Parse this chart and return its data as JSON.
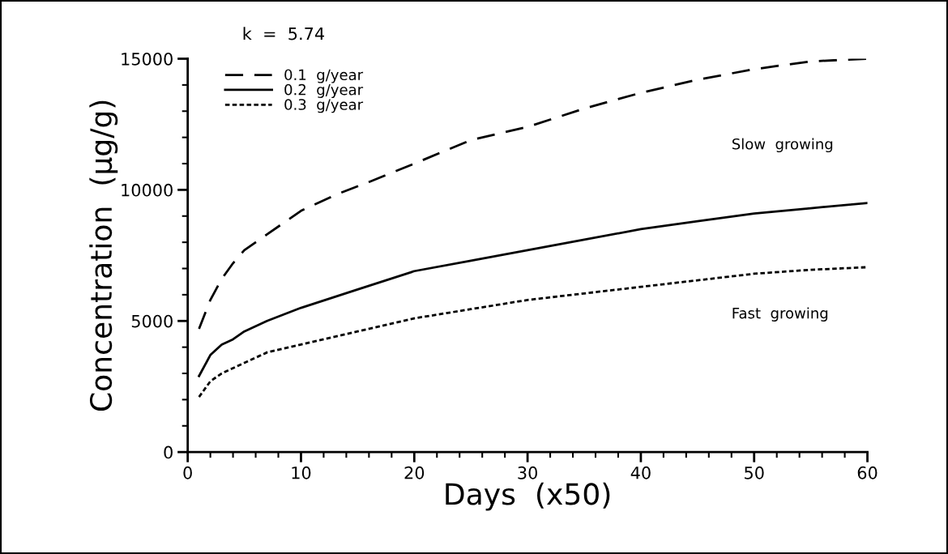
{
  "chart_data": {
    "type": "line",
    "xlabel": "Days  (x50)",
    "ylabel": "Concentration  (μg/g)",
    "annotations": [
      "k  =  5.74",
      "Slow  growing",
      "Fast  growing"
    ],
    "legend": "top left",
    "grid": false,
    "marker": "none",
    "xlim": [
      0,
      60
    ],
    "ylim": [
      0,
      15000
    ],
    "xticks": [
      0,
      {
        "value": 2,
        "label": null
      },
      {
        "value": 4,
        "label": null
      },
      {
        "value": 6,
        "label": null
      },
      {
        "value": 8,
        "label": null
      },
      10,
      {
        "value": 12,
        "label": null
      },
      {
        "value": 14,
        "label": null
      },
      {
        "value": 16,
        "label": null
      },
      {
        "value": 18,
        "label": null
      },
      20,
      {
        "value": 22,
        "label": null
      },
      {
        "value": 24,
        "label": null
      },
      {
        "value": 26,
        "label": null
      },
      {
        "value": 28,
        "label": null
      },
      30,
      {
        "value": 32,
        "label": null
      },
      {
        "value": 34,
        "label": null
      },
      {
        "value": 36,
        "label": null
      },
      {
        "value": 38,
        "label": null
      },
      40,
      {
        "value": 42,
        "label": null
      },
      {
        "value": 44,
        "label": null
      },
      {
        "value": 46,
        "label": null
      },
      {
        "value": 48,
        "label": null
      },
      50,
      {
        "value": 52,
        "label": null
      },
      {
        "value": 54,
        "label": null
      },
      {
        "value": 56,
        "label": null
      },
      {
        "value": 58,
        "label": null
      },
      60
    ],
    "yticks": [
      0,
      {
        "value": 1000,
        "label": null
      },
      {
        "value": 2000,
        "label": null
      },
      {
        "value": 3000,
        "label": null
      },
      {
        "value": 4000,
        "label": null
      },
      5000,
      {
        "value": 6000,
        "label": null
      },
      {
        "value": 7000,
        "label": null
      },
      {
        "value": 8000,
        "label": null
      },
      {
        "value": 9000,
        "label": null
      },
      10000,
      {
        "value": 11000,
        "label": null
      },
      {
        "value": 12000,
        "label": null
      },
      {
        "value": 13000,
        "label": null
      },
      {
        "value": 14000,
        "label": null
      },
      15000
    ],
    "series": [
      {
        "name": "0.1  g/year",
        "color": "#000000",
        "line_style": "dashed",
        "x": [
          1,
          2,
          3,
          4,
          5,
          7,
          10,
          13,
          16,
          20,
          25,
          30,
          35,
          40,
          45,
          50,
          55,
          60
        ],
        "values": [
          4700,
          5800,
          6600,
          7200,
          7700,
          8300,
          9200,
          9800,
          10300,
          11000,
          11900,
          12400,
          13100,
          13700,
          14200,
          14600,
          14900,
          15000
        ]
      },
      {
        "name": "0.2  g/year",
        "color": "#000000",
        "line_style": "solid",
        "x": [
          1,
          2,
          3,
          4,
          5,
          7,
          10,
          15,
          20,
          25,
          30,
          35,
          40,
          45,
          50,
          55,
          60
        ],
        "values": [
          2900,
          3700,
          4100,
          4300,
          4600,
          5000,
          5500,
          6200,
          6900,
          7300,
          7700,
          8100,
          8500,
          8800,
          9100,
          9300,
          9500
        ]
      },
      {
        "name": "0.3  g/year",
        "color": "#000000",
        "line_style": "dotted",
        "x": [
          1,
          2,
          3,
          5,
          7,
          10,
          15,
          20,
          25,
          30,
          35,
          40,
          45,
          50,
          55,
          60
        ],
        "values": [
          2100,
          2700,
          3000,
          3400,
          3800,
          4100,
          4600,
          5100,
          5450,
          5800,
          6050,
          6300,
          6550,
          6800,
          6950,
          7050
        ]
      }
    ]
  }
}
